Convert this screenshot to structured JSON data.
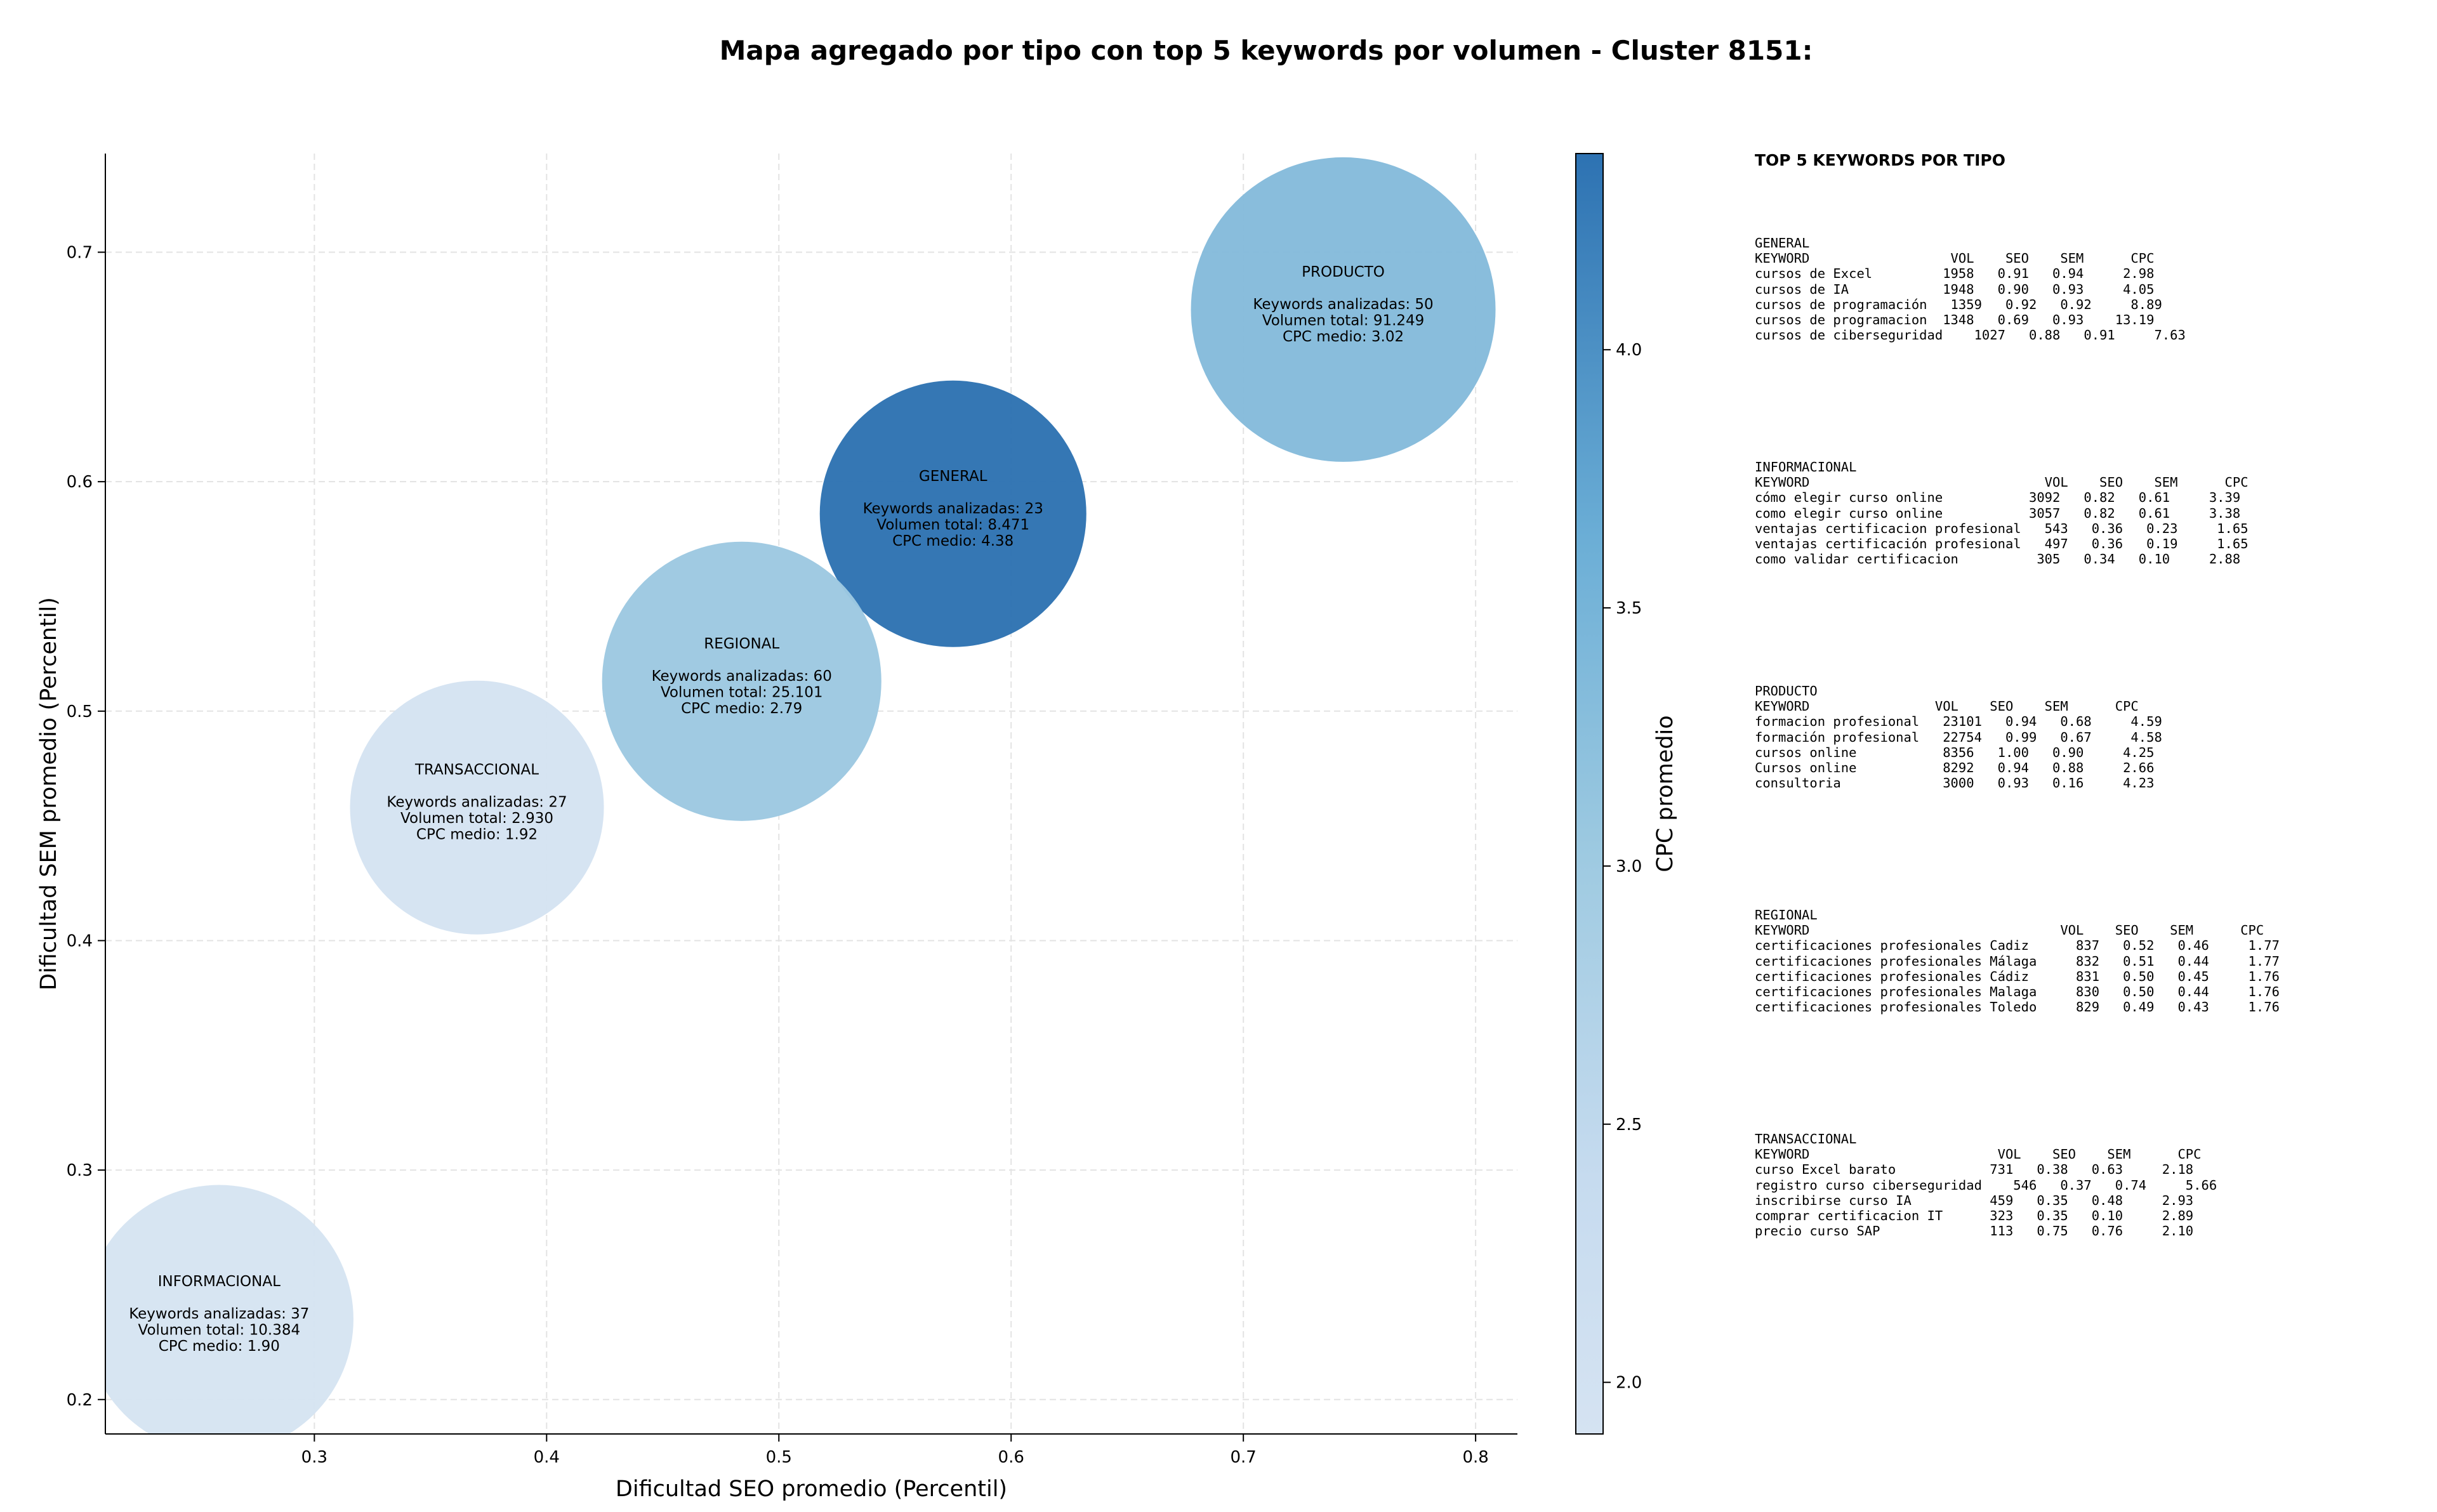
{
  "title": "Mapa agregado por tipo con top 5 keywords por volumen - Cluster 8151:",
  "chart_data": {
    "type": "scatter",
    "title": "Mapa agregado por tipo con top 5 keywords por volumen - Cluster 8151:",
    "xlabel": "Dificultad SEO promedio (Percentil)",
    "ylabel": "Dificultad SEM promedio (Percentil)",
    "xlim": [
      0.21,
      0.818
    ],
    "ylim": [
      0.185,
      0.743
    ],
    "xticks": [
      0.3,
      0.4,
      0.5,
      0.6,
      0.7,
      0.8
    ],
    "xtick_labels": [
      "0.3",
      "0.4",
      "0.5",
      "0.6",
      "0.7",
      "0.8"
    ],
    "yticks": [
      0.2,
      0.3,
      0.4,
      0.5,
      0.6,
      0.7
    ],
    "ytick_labels": [
      "0.2",
      "0.3",
      "0.4",
      "0.5",
      "0.6",
      "0.7"
    ],
    "grid": true,
    "size_encodes": "Volumen total",
    "colorbar": {
      "label": "CPC promedio",
      "min": 1.9,
      "max": 4.38,
      "ticks": [
        2.0,
        2.5,
        3.0,
        3.5,
        4.0
      ],
      "tick_labels": [
        "2.0",
        "2.5",
        "3.0",
        "3.5",
        "4.0"
      ],
      "color_low": "#d5e3f2",
      "color_high": "#2d72b2"
    },
    "points": [
      {
        "name": "PRODUCTO",
        "x": 0.743,
        "y": 0.675,
        "volume": 91249,
        "cpc": 3.02,
        "color": "#85bbdb",
        "label_lines": [
          "PRODUCTO",
          "",
          "Keywords analizadas: 50",
          "Volumen total: 91.249",
          "CPC medio: 3.02"
        ]
      },
      {
        "name": "GENERAL",
        "x": 0.575,
        "y": 0.586,
        "volume": 8471,
        "cpc": 4.38,
        "color": "#2e73b2",
        "label_lines": [
          "GENERAL",
          "",
          "Keywords analizadas: 23",
          "Volumen total: 8.471",
          "CPC medio: 4.38"
        ]
      },
      {
        "name": "REGIONAL",
        "x": 0.484,
        "y": 0.513,
        "volume": 25101,
        "cpc": 2.79,
        "color": "#9dc8e1",
        "label_lines": [
          "REGIONAL",
          "",
          "Keywords analizadas: 60",
          "Volumen total: 25.101",
          "CPC medio: 2.79"
        ]
      },
      {
        "name": "TRANSACCIONAL",
        "x": 0.37,
        "y": 0.458,
        "volume": 2930,
        "cpc": 1.92,
        "color": "#d5e3f2",
        "label_lines": [
          "TRANSACCIONAL",
          "",
          "Keywords analizadas: 27",
          "Volumen total: 2.930",
          "CPC medio: 1.92"
        ]
      },
      {
        "name": "INFORMACIONAL",
        "x": 0.259,
        "y": 0.235,
        "volume": 10384,
        "cpc": 1.9,
        "color": "#d6e4f2",
        "label_lines": [
          "INFORMACIONAL",
          "",
          "Keywords analizadas: 37",
          "Volumen total: 10.384",
          "CPC medio: 1.90"
        ]
      }
    ]
  },
  "side_panel": {
    "heading": "TOP 5 KEYWORDS POR TIPO",
    "blocks": [
      {
        "name": "GENERAL",
        "lines": [
          "GENERAL",
          "KEYWORD                  VOL    SEO    SEM      CPC",
          "cursos de Excel         1958   0.91   0.94     2.98",
          "cursos de IA            1948   0.90   0.93     4.05",
          "cursos de programación   1359   0.92   0.92     8.89",
          "cursos de programacion  1348   0.69   0.93    13.19",
          "cursos de ciberseguridad    1027   0.88   0.91     7.63"
        ]
      },
      {
        "name": "INFORMACIONAL",
        "lines": [
          "INFORMACIONAL",
          "KEYWORD                              VOL    SEO    SEM      CPC",
          "cómo elegir curso online           3092   0.82   0.61     3.39",
          "como elegir curso online           3057   0.82   0.61     3.38",
          "ventajas certificacion profesional   543   0.36   0.23     1.65",
          "ventajas certificación profesional   497   0.36   0.19     1.65",
          "como validar certificacion          305   0.34   0.10     2.88"
        ]
      },
      {
        "name": "PRODUCTO",
        "lines": [
          "PRODUCTO",
          "KEYWORD                VOL    SEO    SEM      CPC",
          "formacion profesional   23101   0.94   0.68     4.59",
          "formación profesional   22754   0.99   0.67     4.58",
          "cursos online           8356   1.00   0.90     4.25",
          "Cursos online           8292   0.94   0.88     2.66",
          "consultoria             3000   0.93   0.16     4.23"
        ]
      },
      {
        "name": "REGIONAL",
        "lines": [
          "REGIONAL",
          "KEYWORD                                VOL    SEO    SEM      CPC",
          "certificaciones profesionales Cadiz      837   0.52   0.46     1.77",
          "certificaciones profesionales Málaga     832   0.51   0.44     1.77",
          "certificaciones profesionales Cádiz      831   0.50   0.45     1.76",
          "certificaciones profesionales Malaga     830   0.50   0.44     1.76",
          "certificaciones profesionales Toledo     829   0.49   0.43     1.76"
        ]
      },
      {
        "name": "TRANSACCIONAL",
        "lines": [
          "TRANSACCIONAL",
          "KEYWORD                        VOL    SEO    SEM      CPC",
          "curso Excel barato            731   0.38   0.63     2.18",
          "registro curso ciberseguridad    546   0.37   0.74     5.66",
          "inscribirse curso IA          459   0.35   0.48     2.93",
          "comprar certificacion IT      323   0.35   0.10     2.89",
          "precio curso SAP              113   0.75   0.76     2.10"
        ]
      }
    ]
  }
}
